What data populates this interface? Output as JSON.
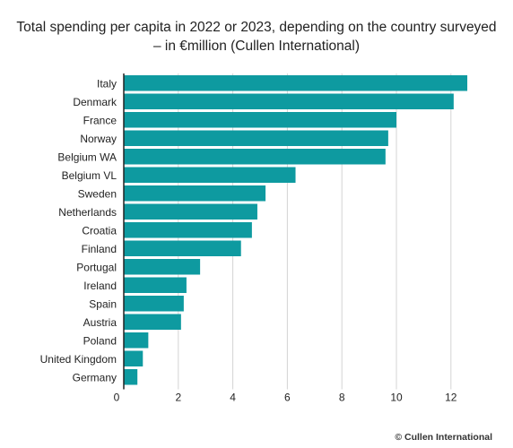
{
  "chart_data": {
    "type": "bar",
    "orientation": "horizontal",
    "title_lines": [
      "Total spending per capita in 2022 or 2023, depending on the country surveyed",
      "– in €million (Cullen International)"
    ],
    "categories": [
      "Italy",
      "Denmark",
      "France",
      "Norway",
      "Belgium WA",
      "Belgium VL",
      "Sweden",
      "Netherlands",
      "Croatia",
      "Finland",
      "Portugal",
      "Ireland",
      "Spain",
      "Austria",
      "Poland",
      "United Kingdom",
      "Germany"
    ],
    "values": [
      12.6,
      12.1,
      10.0,
      9.7,
      9.6,
      6.3,
      5.2,
      4.9,
      4.7,
      4.3,
      2.8,
      2.3,
      2.2,
      2.1,
      0.9,
      0.7,
      0.5
    ],
    "xlim": [
      0,
      13.5
    ],
    "xticks": [
      0,
      2,
      4,
      6,
      8,
      10,
      12
    ],
    "xlabel": "",
    "ylabel": "",
    "grid": "vertical",
    "bar_color": "#0e9aa0",
    "legend": "none"
  },
  "credit": "© Cullen International"
}
